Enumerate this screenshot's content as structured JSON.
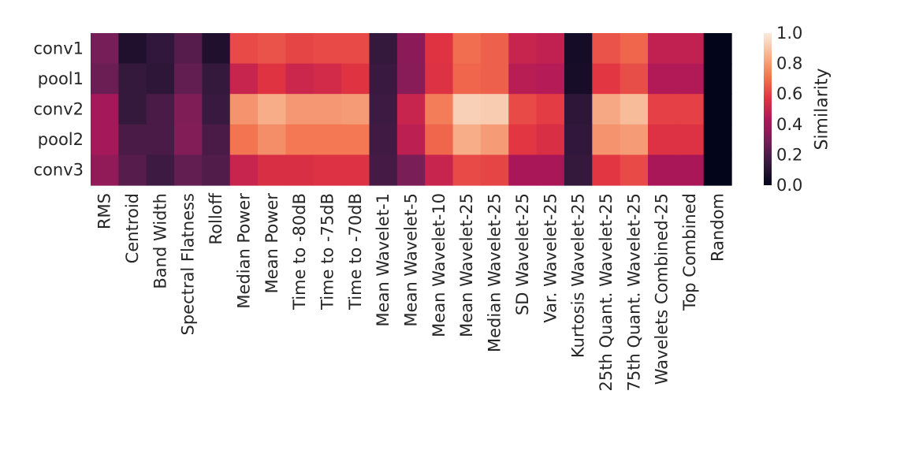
{
  "chart_data": {
    "type": "heatmap",
    "title": "",
    "rows": [
      "conv1",
      "pool1",
      "conv2",
      "pool2",
      "conv3"
    ],
    "columns": [
      "RMS",
      "Centroid",
      "Band Width",
      "Spectral Flatness",
      "Rolloff",
      "Median Power",
      "Mean Power",
      "Time to -80dB",
      "Time to -75dB",
      "Time to -70dB",
      "Mean Wavelet-1",
      "Mean Wavelet-5",
      "Mean Wavelet-10",
      "Mean Wavelet-25",
      "Median Wavelet-25",
      "SD Wavelet-25",
      "Var. Wavelet-25",
      "Kurtosis Wavelet-25",
      "25th Quant. Wavelet-25",
      "75th Quant. Wavelet-25",
      "Wavelets Combined-25",
      "Top Combined",
      "Random"
    ],
    "values": [
      [
        0.3,
        0.08,
        0.13,
        0.22,
        0.08,
        0.62,
        0.64,
        0.61,
        0.62,
        0.62,
        0.14,
        0.35,
        0.57,
        0.7,
        0.67,
        0.5,
        0.48,
        0.05,
        0.64,
        0.68,
        0.48,
        0.48,
        0.0
      ],
      [
        0.27,
        0.14,
        0.12,
        0.25,
        0.14,
        0.5,
        0.57,
        0.51,
        0.53,
        0.57,
        0.15,
        0.34,
        0.56,
        0.68,
        0.67,
        0.46,
        0.45,
        0.06,
        0.58,
        0.63,
        0.44,
        0.44,
        0.0
      ],
      [
        0.41,
        0.14,
        0.19,
        0.32,
        0.15,
        0.78,
        0.84,
        0.79,
        0.79,
        0.8,
        0.16,
        0.5,
        0.73,
        0.93,
        0.92,
        0.62,
        0.59,
        0.12,
        0.83,
        0.88,
        0.6,
        0.6,
        0.0
      ],
      [
        0.41,
        0.19,
        0.19,
        0.33,
        0.19,
        0.71,
        0.77,
        0.72,
        0.72,
        0.72,
        0.17,
        0.47,
        0.68,
        0.84,
        0.8,
        0.58,
        0.55,
        0.13,
        0.78,
        0.8,
        0.56,
        0.56,
        0.0
      ],
      [
        0.36,
        0.22,
        0.16,
        0.25,
        0.21,
        0.5,
        0.55,
        0.55,
        0.56,
        0.56,
        0.18,
        0.31,
        0.5,
        0.62,
        0.61,
        0.42,
        0.42,
        0.14,
        0.58,
        0.62,
        0.42,
        0.42,
        0.0
      ]
    ],
    "colorbar": {
      "label": "Similarity",
      "range": [
        0.0,
        1.0
      ],
      "ticks": [
        "0.0",
        "0.2",
        "0.4",
        "0.6",
        "0.8",
        "1.0"
      ],
      "colormap": "rocket",
      "stops": [
        "#03051a",
        "#36193e",
        "#701f57",
        "#ad1759",
        "#e13342",
        "#f37651",
        "#f6b48f",
        "#faebdd"
      ]
    },
    "grid": false
  }
}
